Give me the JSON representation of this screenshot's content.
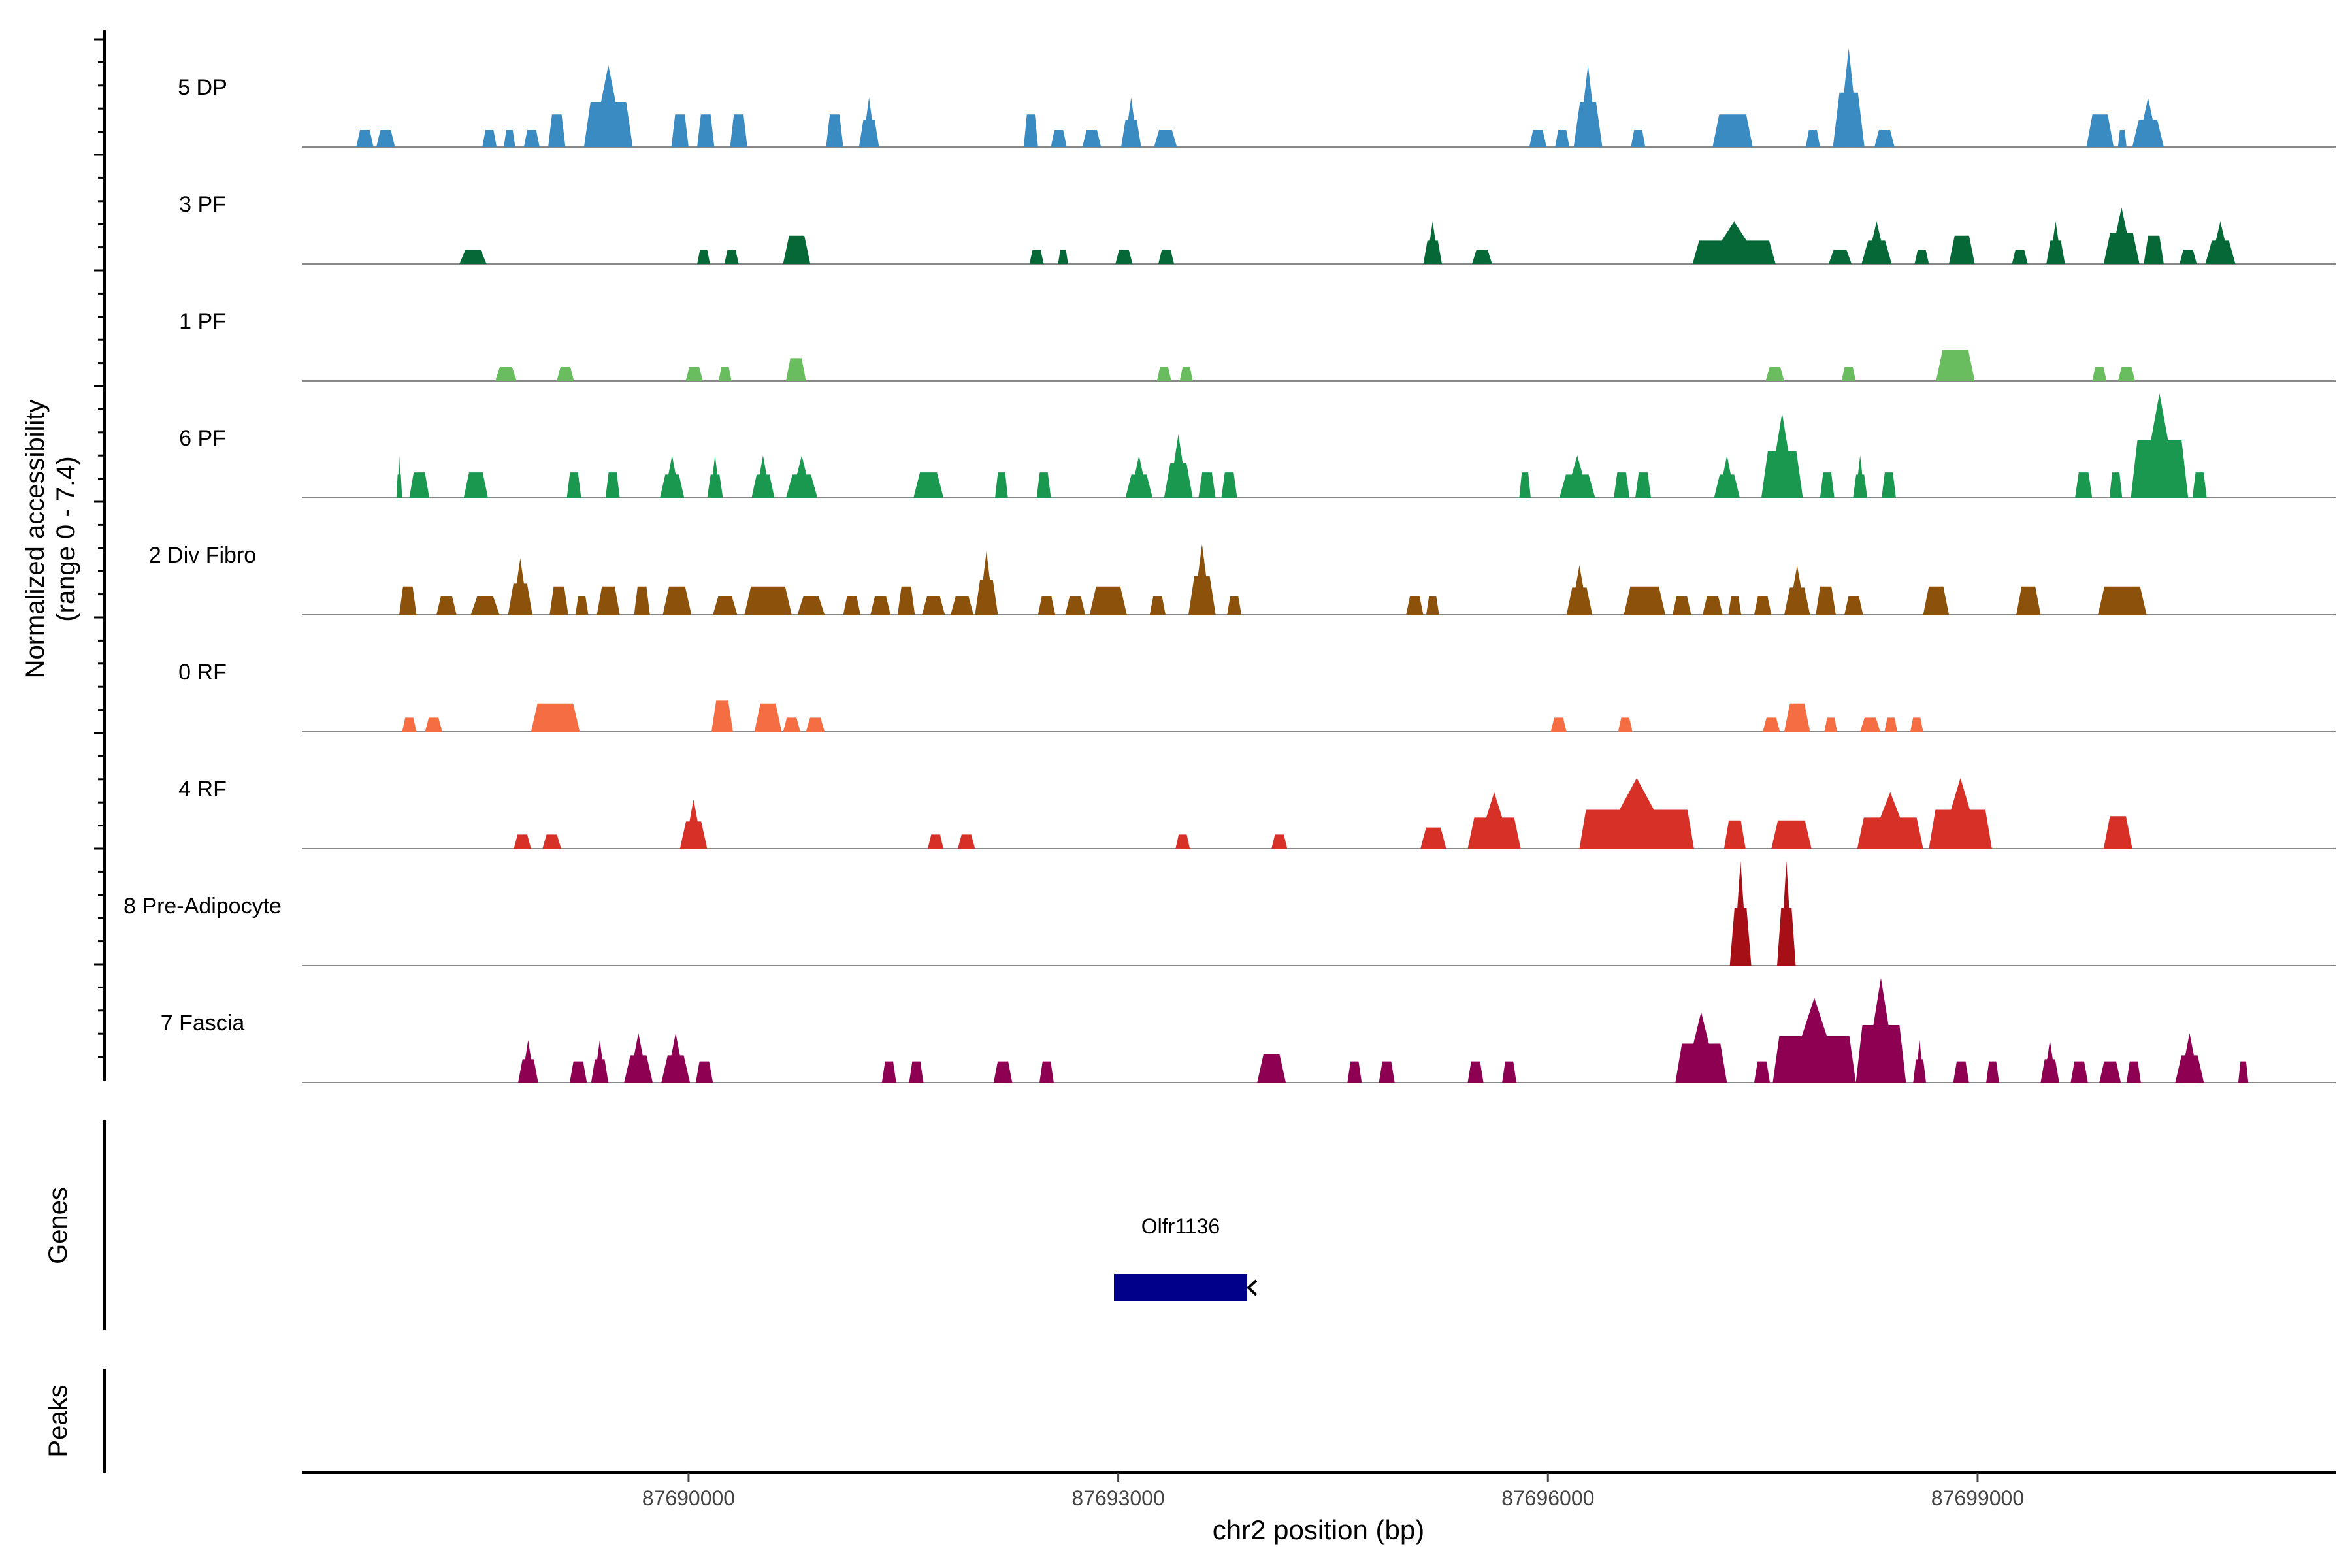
{
  "chart_data": {
    "type": "area",
    "title": "",
    "ylabel_line1": "Normalized accessibility",
    "ylabel_line2": "(range 0 - 7.4)",
    "ylim": [
      0,
      7.4
    ],
    "xlabel": "chr2 position (bp)",
    "xlim": [
      87687300,
      87701500
    ],
    "xticks": [
      87690000,
      87693000,
      87696000,
      87699000
    ],
    "xtick_labels": [
      "87690000",
      "87693000",
      "87696000",
      "87699000"
    ],
    "genes_label": "Genes",
    "peaks_label": "Peaks",
    "genes": [
      {
        "name": "Olfr1136",
        "start": 87692970,
        "end": 87693900,
        "strand": "-",
        "color": "#00008B"
      }
    ],
    "tracks": [
      {
        "name": "5 DP",
        "color": "#3A8BC2",
        "peaks": [
          [
            87687680,
            87687800,
            1.2
          ],
          [
            87687820,
            87687950,
            1.2
          ],
          [
            87688560,
            87688660,
            1.2
          ],
          [
            87688710,
            87688790,
            1.2
          ],
          [
            87688850,
            87688960,
            1.2
          ],
          [
            87689020,
            87689140,
            2.3
          ],
          [
            87689270,
            87689610,
            5.8
          ],
          [
            87689880,
            87690000,
            2.3
          ],
          [
            87690060,
            87690180,
            2.3
          ],
          [
            87690290,
            87690410,
            2.3
          ],
          [
            87690960,
            87691080,
            2.3
          ],
          [
            87691190,
            87691330,
            3.5
          ],
          [
            87692340,
            87692440,
            2.3
          ],
          [
            87692530,
            87692640,
            1.2
          ],
          [
            87692750,
            87692880,
            1.2
          ],
          [
            87693020,
            87693160,
            3.5
          ],
          [
            87693250,
            87693410,
            1.2
          ],
          [
            87695870,
            87695990,
            1.2
          ],
          [
            87696050,
            87696150,
            1.2
          ],
          [
            87696180,
            87696380,
            5.8
          ],
          [
            87696580,
            87696680,
            1.2
          ],
          [
            87697150,
            87697430,
            2.3
          ],
          [
            87697800,
            87697900,
            1.2
          ],
          [
            87697990,
            87698210,
            7.0
          ],
          [
            87698280,
            87698420,
            1.2
          ],
          [
            87699760,
            87699950,
            2.3
          ],
          [
            87699980,
            87700040,
            1.2
          ],
          [
            87700080,
            87700300,
            3.5
          ]
        ]
      },
      {
        "name": "3 PF",
        "color": "#066837",
        "peaks": [
          [
            87688400,
            87688590,
            1.0
          ],
          [
            87690060,
            87690150,
            1.0
          ],
          [
            87690250,
            87690350,
            1.0
          ],
          [
            87690660,
            87690850,
            2.0
          ],
          [
            87692380,
            87692480,
            1.0
          ],
          [
            87692580,
            87692650,
            1.0
          ],
          [
            87692980,
            87693100,
            1.0
          ],
          [
            87693280,
            87693390,
            1.0
          ],
          [
            87695130,
            87695260,
            3.0
          ],
          [
            87695470,
            87695610,
            1.0
          ],
          [
            87697010,
            87697590,
            3.0
          ],
          [
            87697960,
            87698120,
            1.0
          ],
          [
            87698190,
            87698400,
            3.0
          ],
          [
            87698560,
            87698660,
            1.0
          ],
          [
            87698800,
            87698980,
            2.0
          ],
          [
            87699240,
            87699350,
            1.0
          ],
          [
            87699480,
            87699610,
            3.0
          ],
          [
            87699880,
            87700130,
            4.0
          ],
          [
            87700160,
            87700300,
            2.0
          ],
          [
            87700410,
            87700530,
            1.0
          ],
          [
            87700590,
            87700800,
            3.0
          ]
        ]
      },
      {
        "name": "1 PF",
        "color": "#6ABD5F",
        "peaks": [
          [
            87688650,
            87688800,
            1.0
          ],
          [
            87689080,
            87689200,
            1.0
          ],
          [
            87689980,
            87690100,
            1.0
          ],
          [
            87690210,
            87690300,
            1.0
          ],
          [
            87690680,
            87690820,
            1.6
          ],
          [
            87693270,
            87693370,
            1.0
          ],
          [
            87693430,
            87693520,
            1.0
          ],
          [
            87697520,
            87697650,
            1.0
          ],
          [
            87698050,
            87698150,
            1.0
          ],
          [
            87698710,
            87698980,
            2.2
          ],
          [
            87699800,
            87699900,
            1.0
          ],
          [
            87699980,
            87700100,
            1.0
          ]
        ]
      },
      {
        "name": "6 PF",
        "color": "#1A9850",
        "peaks": [
          [
            87687960,
            87688000,
            3.0
          ],
          [
            87688050,
            87688190,
            1.8
          ],
          [
            87688430,
            87688600,
            1.8
          ],
          [
            87689150,
            87689250,
            1.8
          ],
          [
            87689420,
            87689520,
            1.8
          ],
          [
            87689800,
            87689970,
            3.0
          ],
          [
            87690130,
            87690240,
            3.0
          ],
          [
            87690440,
            87690600,
            3.0
          ],
          [
            87690680,
            87690900,
            3.0
          ],
          [
            87691570,
            87691780,
            1.8
          ],
          [
            87692140,
            87692230,
            1.8
          ],
          [
            87692430,
            87692530,
            1.8
          ],
          [
            87693050,
            87693240,
            3.0
          ],
          [
            87693320,
            87693520,
            4.5
          ],
          [
            87693560,
            87693680,
            1.8
          ],
          [
            87693720,
            87693830,
            1.8
          ],
          [
            87695800,
            87695880,
            1.8
          ],
          [
            87696080,
            87696330,
            3.0
          ],
          [
            87696460,
            87696570,
            1.8
          ],
          [
            87696610,
            87696720,
            1.8
          ],
          [
            87697160,
            87697340,
            3.0
          ],
          [
            87697490,
            87697780,
            6.0
          ],
          [
            87697900,
            87698000,
            1.8
          ],
          [
            87698130,
            87698230,
            3.0
          ],
          [
            87698330,
            87698430,
            1.8
          ],
          [
            87699680,
            87699800,
            1.8
          ],
          [
            87699920,
            87700010,
            1.8
          ],
          [
            87700070,
            87700470,
            7.4
          ],
          [
            87700500,
            87700600,
            1.8
          ]
        ]
      },
      {
        "name": "2 Div Fibro",
        "color": "#8C510A",
        "peaks": [
          [
            87687980,
            87688100,
            2.0
          ],
          [
            87688240,
            87688380,
            1.3
          ],
          [
            87688480,
            87688680,
            1.3
          ],
          [
            87688740,
            87688910,
            4.0
          ],
          [
            87689030,
            87689160,
            2.0
          ],
          [
            87689210,
            87689300,
            1.3
          ],
          [
            87689360,
            87689520,
            2.0
          ],
          [
            87689620,
            87689730,
            2.0
          ],
          [
            87689820,
            87690020,
            2.0
          ],
          [
            87690170,
            87690340,
            1.3
          ],
          [
            87690390,
            87690720,
            2.0
          ],
          [
            87690760,
            87690950,
            1.3
          ],
          [
            87691080,
            87691200,
            1.3
          ],
          [
            87691270,
            87691410,
            1.3
          ],
          [
            87691460,
            87691580,
            2.0
          ],
          [
            87691630,
            87691790,
            1.3
          ],
          [
            87691830,
            87691990,
            1.3
          ],
          [
            87692000,
            87692160,
            4.5
          ],
          [
            87692440,
            87692560,
            1.3
          ],
          [
            87692630,
            87692770,
            1.3
          ],
          [
            87692800,
            87693060,
            2.0
          ],
          [
            87693220,
            87693330,
            1.3
          ],
          [
            87693490,
            87693680,
            5.0
          ],
          [
            87693760,
            87693860,
            1.3
          ],
          [
            87695010,
            87695130,
            1.3
          ],
          [
            87695150,
            87695240,
            1.3
          ],
          [
            87696130,
            87696310,
            3.5
          ],
          [
            87696530,
            87696820,
            2.0
          ],
          [
            87696870,
            87697000,
            1.3
          ],
          [
            87697080,
            87697220,
            1.3
          ],
          [
            87697260,
            87697350,
            1.3
          ],
          [
            87697440,
            87697560,
            1.3
          ],
          [
            87697650,
            87697830,
            3.5
          ],
          [
            87697870,
            87698010,
            2.0
          ],
          [
            87698070,
            87698200,
            1.3
          ],
          [
            87698620,
            87698800,
            2.0
          ],
          [
            87699270,
            87699440,
            2.0
          ],
          [
            87699840,
            87700180,
            2.0
          ]
        ]
      },
      {
        "name": "0 RF",
        "color": "#F46D43",
        "peaks": [
          [
            87688000,
            87688100,
            1.0
          ],
          [
            87688160,
            87688280,
            1.0
          ],
          [
            87688900,
            87689240,
            2.0
          ],
          [
            87690160,
            87690310,
            2.2
          ],
          [
            87690460,
            87690650,
            2.0
          ],
          [
            87690660,
            87690780,
            1.0
          ],
          [
            87690820,
            87690950,
            1.0
          ],
          [
            87696020,
            87696130,
            1.0
          ],
          [
            87696490,
            87696590,
            1.0
          ],
          [
            87697500,
            87697620,
            1.0
          ],
          [
            87697650,
            87697830,
            2.0
          ],
          [
            87697930,
            87698020,
            1.0
          ],
          [
            87698180,
            87698320,
            1.0
          ],
          [
            87698350,
            87698440,
            1.0
          ],
          [
            87698530,
            87698620,
            1.0
          ]
        ]
      },
      {
        "name": "4 RF",
        "color": "#D73027",
        "peaks": [
          [
            87688780,
            87688900,
            1.0
          ],
          [
            87688980,
            87689110,
            1.0
          ],
          [
            87689940,
            87690130,
            3.5
          ],
          [
            87691670,
            87691780,
            1.0
          ],
          [
            87691880,
            87692000,
            1.0
          ],
          [
            87693400,
            87693500,
            1.0
          ],
          [
            87694070,
            87694180,
            1.0
          ],
          [
            87695110,
            87695290,
            1.5
          ],
          [
            87695440,
            87695810,
            4.0
          ],
          [
            87696220,
            87697020,
            5.0
          ],
          [
            87697230,
            87697380,
            2.0
          ],
          [
            87697560,
            87697840,
            2.0
          ],
          [
            87698160,
            87698620,
            4.0
          ],
          [
            87698660,
            87699100,
            5.0
          ],
          [
            87699880,
            87700080,
            2.3
          ]
        ]
      },
      {
        "name": "8 Pre-Adipocyte",
        "color": "#A50F15",
        "peaks": [
          [
            87697270,
            87697420,
            7.4
          ],
          [
            87697600,
            87697730,
            7.4
          ]
        ]
      },
      {
        "name": "7 Fascia",
        "color": "#8E0152",
        "peaks": [
          [
            87688810,
            87688950,
            3.0
          ],
          [
            87689170,
            87689290,
            1.5
          ],
          [
            87689320,
            87689440,
            3.0
          ],
          [
            87689550,
            87689750,
            3.5
          ],
          [
            87689810,
            87690010,
            3.5
          ],
          [
            87690050,
            87690170,
            1.5
          ],
          [
            87691350,
            87691450,
            1.5
          ],
          [
            87691540,
            87691640,
            1.5
          ],
          [
            87692130,
            87692260,
            1.5
          ],
          [
            87692450,
            87692550,
            1.5
          ],
          [
            87693970,
            87694170,
            2.0
          ],
          [
            87694600,
            87694700,
            1.5
          ],
          [
            87694820,
            87694930,
            1.5
          ],
          [
            87695440,
            87695550,
            1.5
          ],
          [
            87695680,
            87695780,
            1.5
          ],
          [
            87696890,
            87697250,
            5.0
          ],
          [
            87697440,
            87697550,
            1.5
          ],
          [
            87697570,
            87698150,
            6.0
          ],
          [
            87698150,
            87698500,
            7.4
          ],
          [
            87698550,
            87698640,
            3.0
          ],
          [
            87698830,
            87698940,
            1.5
          ],
          [
            87699060,
            87699150,
            1.5
          ],
          [
            87699440,
            87699570,
            3.0
          ],
          [
            87699650,
            87699770,
            1.5
          ],
          [
            87699850,
            87700000,
            1.5
          ],
          [
            87700040,
            87700140,
            1.5
          ],
          [
            87700380,
            87700580,
            3.5
          ],
          [
            87700820,
            87700890,
            1.5
          ]
        ]
      }
    ]
  }
}
